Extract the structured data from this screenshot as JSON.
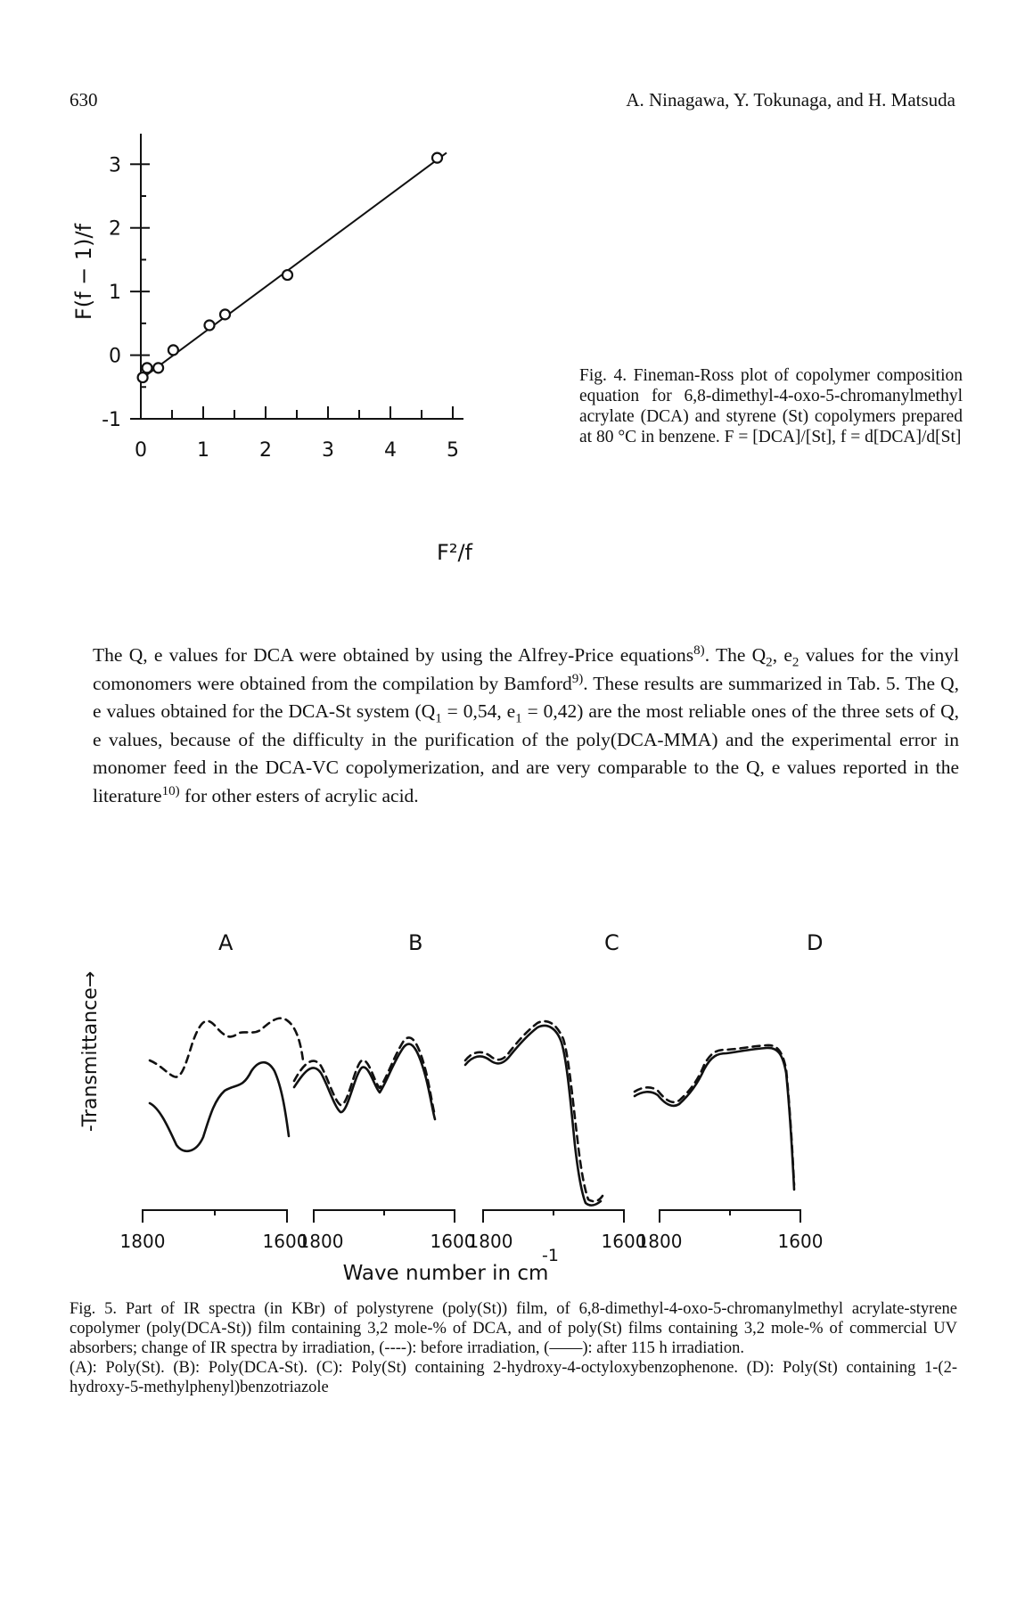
{
  "header": {
    "page_number": "630",
    "authors": "A. Ninagawa, Y. Tokunaga, and H. Matsuda"
  },
  "fig4": {
    "caption": "Fig. 4. Fineman-Ross plot of copolymer composition equation for 6,8-dimethyl-4-oxo-5-chromanylmethyl acrylate (DCA) and styrene (St) copolymers prepared at 80 °C in benzene. F = [DCA]/[St], f = d[DCA]/d[St]",
    "y_axis_label": "F(f − 1)/f",
    "x_axis_label": "F²/f"
  },
  "body_text": {
    "p1_a": "The Q, e values for DCA were obtained by using the Alfrey-Price equations",
    "p1_ref1": "8)",
    "p1_b": ". The Q",
    "p1_sub1": "2",
    "p1_c": ", e",
    "p1_sub2": "2",
    "p1_d": " values for the vinyl comonomers were obtained from the compilation by Bamford",
    "p1_ref2": "9)",
    "p1_e": ". These results are summarized in Tab. 5. The Q, e values obtained for the DCA-St system (Q",
    "p1_sub3": "1",
    "p1_f": " = 0,54, e",
    "p1_sub4": "1",
    "p1_g": " = 0,42) are the most reliable ones of the three sets of Q, e values, because of the difficulty in the purification of the poly(DCA-MMA) and the experimental error in monomer feed in the DCA-VC copolymerization, and are very comparable to the Q, e values reported in the literature",
    "p1_ref3": "10)",
    "p1_h": " for other esters of acrylic acid."
  },
  "fig5": {
    "y_axis_label": "-Transmittance→",
    "x_axis_label": "Wave number in cm",
    "x_axis_exponent": "-1",
    "caption_p1": "Fig. 5. Part of IR spectra (in KBr) of polystyrene (poly(St)) film, of 6,8-dimethyl-4-oxo-5-chromanylmethyl acrylate-styrene copolymer (poly(DCA-St)) film containing 3,2 mole-% of DCA, and of poly(St) films containing 3,2 mole-% of commercial UV absorbers; change of IR spectra by irradiation, (----): before irradiation, (——): after 115 h irradiation.",
    "caption_p2": "(A): Poly(St). (B): Poly(DCA-St). (C): Poly(St) containing 2-hydroxy-4-octyloxybenzophenone. (D): Poly(St) containing 1-(2-hydroxy-5-methylphenyl)benzotriazole",
    "panels": [
      {
        "letter": "A",
        "x_start": "1800",
        "x_end": "1600"
      },
      {
        "letter": "B",
        "x_start": "1800",
        "x_end": "1600"
      },
      {
        "letter": "C",
        "x_start": "1800",
        "x_end": "1600"
      },
      {
        "letter": "D",
        "x_start": "1800",
        "x_end": "1600"
      }
    ]
  },
  "chart_data": [
    {
      "type": "scatter",
      "title": "",
      "xlabel": "F²/f",
      "ylabel": "F(f − 1)/f",
      "xlim": [
        0,
        5
      ],
      "ylim": [
        -1,
        3.5
      ],
      "x_ticks": [
        "0",
        "1",
        "2",
        "3",
        "4",
        "5"
      ],
      "y_ticks": [
        "-1",
        "0",
        "1",
        "2",
        "3"
      ],
      "points": [
        {
          "x": 0.03,
          "y": -0.35
        },
        {
          "x": 0.1,
          "y": -0.2
        },
        {
          "x": 0.28,
          "y": -0.2
        },
        {
          "x": 0.52,
          "y": 0.08
        },
        {
          "x": 1.1,
          "y": 0.47
        },
        {
          "x": 1.35,
          "y": 0.64
        },
        {
          "x": 2.35,
          "y": 1.26
        },
        {
          "x": 4.75,
          "y": 3.1
        }
      ],
      "fit_line": {
        "x": [
          0.0,
          4.9
        ],
        "y": [
          -0.38,
          3.18
        ]
      },
      "grid": false
    },
    {
      "type": "line",
      "title": "",
      "xlabel": "Wave number in cm-1",
      "ylabel": "-Transmittance→",
      "panels": [
        "A",
        "B",
        "C",
        "D"
      ],
      "xlim": [
        1800,
        1600
      ],
      "series_styles": [
        "dashed: before irradiation",
        "solid: after 115 h irradiation"
      ]
    }
  ]
}
